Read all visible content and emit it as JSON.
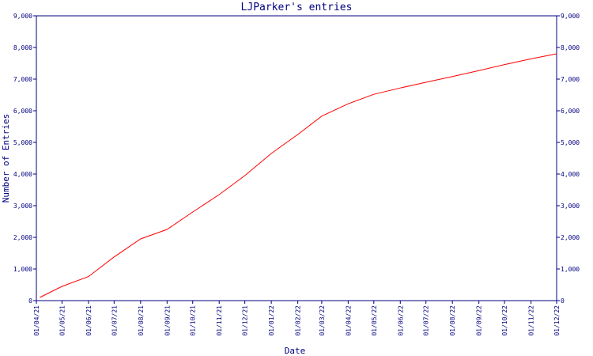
{
  "chart_data": {
    "type": "line",
    "title": "LJParker's entries",
    "xlabel": "Date",
    "ylabel": "Number of Entries",
    "ylim": [
      0,
      9000
    ],
    "y_ticks": [
      0,
      1000,
      2000,
      3000,
      4000,
      5000,
      6000,
      7000,
      8000,
      9000
    ],
    "y_tick_labels": [
      "0",
      "1,000",
      "2,000",
      "3,000",
      "4,000",
      "5,000",
      "6,000",
      "7,000",
      "8,000",
      "9,000"
    ],
    "x_tick_labels": [
      "01/04/21",
      "01/05/21",
      "01/06/21",
      "01/07/21",
      "01/08/21",
      "01/09/21",
      "01/10/21",
      "01/11/21",
      "01/12/21",
      "01/01/22",
      "01/02/22",
      "01/03/22",
      "01/04/22",
      "01/05/22",
      "01/06/22",
      "01/07/22",
      "01/08/22",
      "01/09/22",
      "01/10/22",
      "01/11/22",
      "01/12/22"
    ],
    "x_range": [
      "2021-04-01",
      "2022-12-01"
    ],
    "right_axis": true,
    "grid": false,
    "colors": {
      "frame": "#000080",
      "line": "#ff0000",
      "text": "#000080"
    },
    "series": [
      {
        "x": [
          "2021-04-05",
          "2021-05-01",
          "2021-06-01",
          "2021-07-01",
          "2021-08-01",
          "2021-09-01",
          "2021-10-01",
          "2021-11-01",
          "2021-12-01",
          "2022-01-01",
          "2022-02-01",
          "2022-03-01",
          "2022-04-01",
          "2022-05-01",
          "2022-06-01",
          "2022-07-01",
          "2022-08-01",
          "2022-09-01",
          "2022-10-01",
          "2022-11-01",
          "2022-12-01"
        ],
        "values": [
          100,
          450,
          760,
          1380,
          1950,
          2250,
          2800,
          3350,
          3950,
          4650,
          5250,
          5830,
          6220,
          6520,
          6720,
          6900,
          7080,
          7270,
          7460,
          7640,
          7800
        ]
      }
    ]
  }
}
